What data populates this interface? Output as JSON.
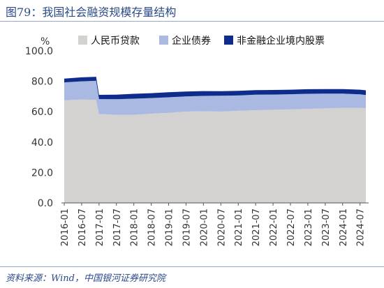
{
  "header": {
    "title": "图79：我国社会融资规模存量结构"
  },
  "footer": {
    "source": "资料来源：Wind，中国银河证券研究院"
  },
  "chart_data": {
    "type": "area",
    "stacked": true,
    "title": "图79：我国社会融资规模存量结构",
    "ylabel": "%",
    "ylim": [
      0,
      100
    ],
    "yticks": [
      "0.0",
      "20.0",
      "40.0",
      "60.0",
      "80.0",
      "100.0"
    ],
    "legend_position": "top",
    "xticks": [
      "2016-01",
      "2016-07",
      "2017-01",
      "2017-07",
      "2018-01",
      "2018-07",
      "2019-01",
      "2019-07",
      "2020-01",
      "2020-07",
      "2021-01",
      "2021-07",
      "2022-01",
      "2022-07",
      "2023-01",
      "2023-07",
      "2024-01",
      "2024-07"
    ],
    "x": [
      "2016-01",
      "2016-07",
      "2016-12",
      "2017-01",
      "2017-07",
      "2018-01",
      "2018-07",
      "2019-01",
      "2019-07",
      "2020-01",
      "2020-07",
      "2021-01",
      "2021-07",
      "2022-01",
      "2022-07",
      "2023-01",
      "2023-07",
      "2024-01",
      "2024-07",
      "2024-09"
    ],
    "series": [
      {
        "name": "人民币贷款",
        "color": "#d4d1d1",
        "values": [
          67.5,
          68.0,
          67.8,
          58.5,
          58.0,
          58.0,
          58.7,
          59.3,
          60.1,
          60.3,
          60.1,
          60.6,
          61.0,
          61.3,
          61.6,
          61.9,
          62.2,
          62.5,
          62.5,
          62.4
        ]
      },
      {
        "name": "企业债券",
        "color": "#a9b9e2",
        "values": [
          11.8,
          12.0,
          12.5,
          9.8,
          10.2,
          10.6,
          10.3,
          10.2,
          10.0,
          10.1,
          10.4,
          10.1,
          10.2,
          10.0,
          9.9,
          9.9,
          9.7,
          9.4,
          8.9,
          8.6
        ]
      },
      {
        "name": "非金融企业境内股票",
        "color": "#0d2c8c",
        "values": [
          2.5,
          2.6,
          2.7,
          2.8,
          3.0,
          3.2,
          3.2,
          3.3,
          3.2,
          3.2,
          3.0,
          3.0,
          3.0,
          3.0,
          3.0,
          3.0,
          3.0,
          3.0,
          3.1,
          3.1
        ]
      }
    ]
  }
}
